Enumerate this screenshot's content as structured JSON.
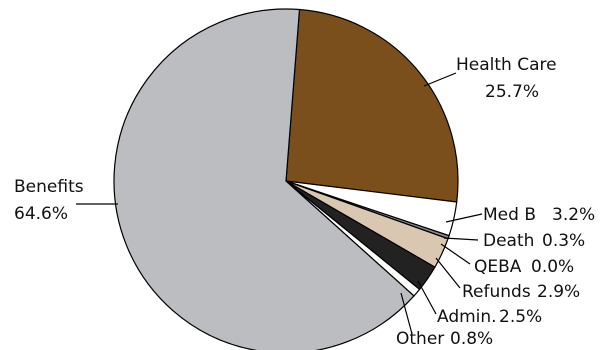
{
  "chart_data": {
    "type": "pie",
    "title": "",
    "slices": [
      {
        "label": "Health Care",
        "value_text": "25.7%",
        "value": 25.7,
        "color": "#7a4f1c"
      },
      {
        "label": "Med B",
        "value_text": "3.2%",
        "value": 3.2,
        "color": "#ffffff"
      },
      {
        "label": "Death",
        "value_text": "0.3%",
        "value": 0.3,
        "color": "#8a8a8a"
      },
      {
        "label": "QEBA",
        "value_text": "0.0%",
        "value": 0.0,
        "color": "#d9c7b2"
      },
      {
        "label": "Refunds",
        "value_text": "2.9%",
        "value": 2.9,
        "color": "#d9c7b2"
      },
      {
        "label": "Admin.",
        "value_text": "2.5%",
        "value": 2.5,
        "color": "#222222"
      },
      {
        "label": "Other",
        "value_text": "0.8%",
        "value": 0.8,
        "color": "#ffffff"
      },
      {
        "label": "Benefits",
        "value_text": "64.6%",
        "value": 64.6,
        "color": "#bbbdc0"
      }
    ]
  }
}
